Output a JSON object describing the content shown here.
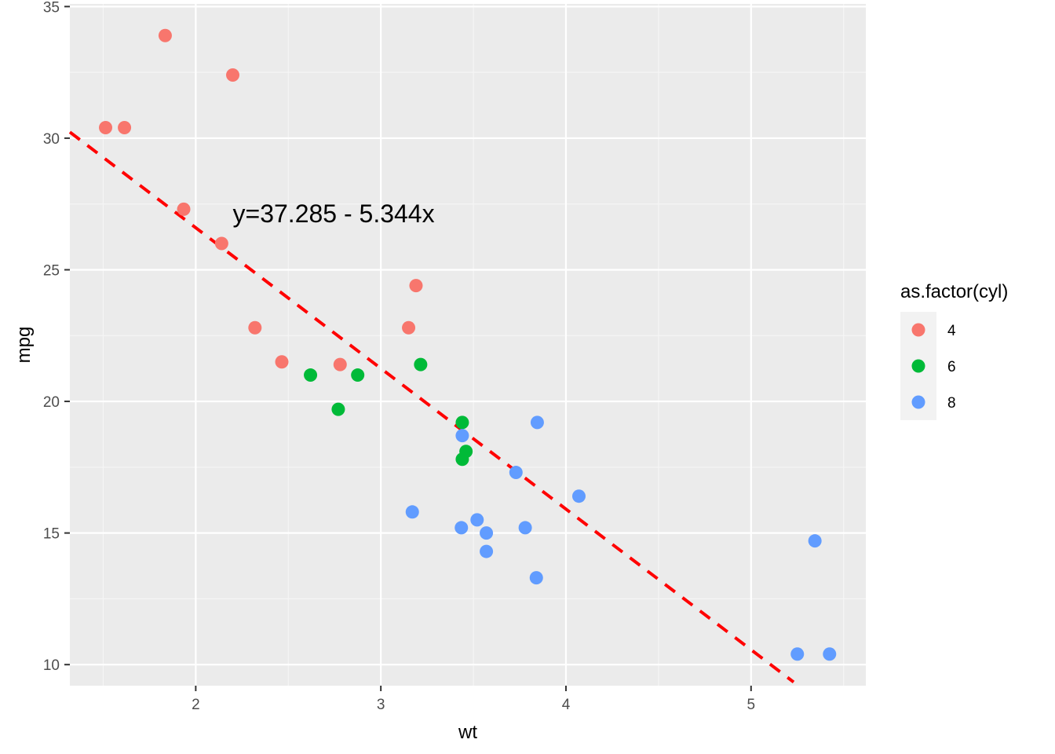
{
  "chart_data": {
    "type": "scatter",
    "xlabel": "wt",
    "ylabel": "mpg",
    "xlim": [
      1.32,
      5.62
    ],
    "ylim": [
      9.2,
      35.1
    ],
    "x_ticks": [
      2,
      3,
      4,
      5
    ],
    "y_ticks": [
      10,
      15,
      20,
      25,
      30,
      35
    ],
    "x_tick_labels": [
      "2",
      "3",
      "4",
      "5"
    ],
    "y_tick_labels": [
      "10",
      "15",
      "20",
      "25",
      "30",
      "35"
    ],
    "grid": true,
    "legend": {
      "title": "as.factor(cyl)",
      "placement": "right"
    },
    "colors": {
      "panel_background": "#ebebeb",
      "grid_major": "#ffffff",
      "grid_minor": "#f5f5f5",
      "tick_text": "#4d4d4d",
      "trend_line": "#ff0000"
    },
    "series": [
      {
        "name": "4",
        "color": "#F8766D",
        "points": [
          [
            2.32,
            22.8
          ],
          [
            3.19,
            24.4
          ],
          [
            3.15,
            22.8
          ],
          [
            2.2,
            32.4
          ],
          [
            1.615,
            30.4
          ],
          [
            1.835,
            33.9
          ],
          [
            2.465,
            21.5
          ],
          [
            1.935,
            27.3
          ],
          [
            2.14,
            26.0
          ],
          [
            1.513,
            30.4
          ],
          [
            2.78,
            21.4
          ]
        ]
      },
      {
        "name": "6",
        "color": "#00BA38",
        "points": [
          [
            2.62,
            21.0
          ],
          [
            2.875,
            21.0
          ],
          [
            3.215,
            21.4
          ],
          [
            3.46,
            18.1
          ],
          [
            3.44,
            19.2
          ],
          [
            3.44,
            17.8
          ],
          [
            2.77,
            19.7
          ]
        ]
      },
      {
        "name": "8",
        "color": "#619CFF",
        "points": [
          [
            3.44,
            18.7
          ],
          [
            3.57,
            14.3
          ],
          [
            4.07,
            16.4
          ],
          [
            3.73,
            17.3
          ],
          [
            3.78,
            15.2
          ],
          [
            5.25,
            10.4
          ],
          [
            5.424,
            10.4
          ],
          [
            5.345,
            14.7
          ],
          [
            3.52,
            15.5
          ],
          [
            3.435,
            15.2
          ],
          [
            3.84,
            13.3
          ],
          [
            3.845,
            19.2
          ],
          [
            3.17,
            15.8
          ],
          [
            3.57,
            15.0
          ]
        ]
      }
    ],
    "trend_line": {
      "intercept": 37.285,
      "slope": -5.344,
      "style": "dashed",
      "x_range": [
        1.32,
        5.23
      ]
    },
    "annotations": [
      {
        "text": "y=37.285 - 5.344x",
        "x": 2.2,
        "y": 26.8
      }
    ]
  }
}
